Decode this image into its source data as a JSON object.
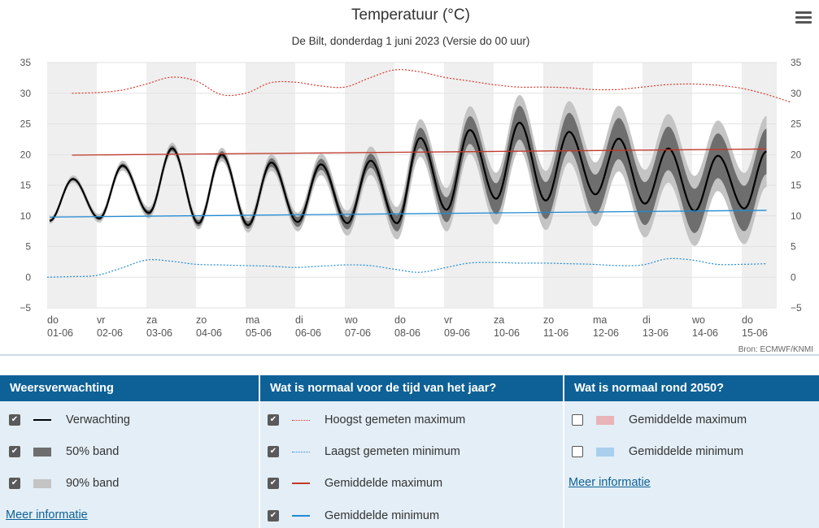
{
  "chart_data": {
    "type": "line",
    "title": "Temperatuur (°C)",
    "subtitle": "De Bilt, donderdag 1 juni 2023 (Versie do 00 uur)",
    "source": "Bron: ECMWF/KNMI",
    "ylim": [
      -5,
      35
    ],
    "yticks": [
      -5,
      0,
      5,
      10,
      15,
      20,
      25,
      30,
      35
    ],
    "ytick_labels": [
      "−5",
      "0",
      "5",
      "10",
      "15",
      "20",
      "25",
      "30",
      "35"
    ],
    "x_days": [
      "do",
      "vr",
      "za",
      "zo",
      "ma",
      "di",
      "wo",
      "do",
      "vr",
      "za",
      "zo",
      "ma",
      "di",
      "wo",
      "do"
    ],
    "x_dates": [
      "01-06",
      "02-06",
      "03-06",
      "04-06",
      "05-06",
      "06-06",
      "07-06",
      "08-06",
      "09-06",
      "10-06",
      "11-06",
      "12-06",
      "13-06",
      "14-06",
      "15-06"
    ],
    "grid": true,
    "alternating_day_shading": true,
    "forecast": {
      "name": "Verwachting",
      "color": "#000000",
      "daily_min": [
        9.2,
        9.6,
        10.5,
        8.8,
        8.5,
        9.0,
        8.8,
        8.8,
        11.0,
        12.8,
        12.5,
        13.5,
        12.0,
        10.8,
        11.2
      ],
      "daily_max": [
        16.0,
        18.2,
        21.0,
        20.0,
        18.7,
        18.4,
        19.0,
        22.7,
        24.0,
        25.2,
        23.7,
        22.6,
        21.0,
        19.8
      ],
      "end_value": 20.5,
      "band50_halfwidth": [
        0.2,
        0.3,
        0.4,
        0.5,
        0.6,
        0.8,
        1.0,
        1.3,
        2.0,
        2.5,
        3.0,
        3.2,
        3.5,
        3.6,
        3.7
      ],
      "band90_halfwidth": [
        0.5,
        0.7,
        0.9,
        1.0,
        1.2,
        1.5,
        2.0,
        2.6,
        3.5,
        4.2,
        4.8,
        5.2,
        5.5,
        5.7,
        5.8
      ]
    },
    "band50": {
      "name": "50% band",
      "color": "#6e6e6e"
    },
    "band90": {
      "name": "90% band",
      "color": "#c4c4c4"
    },
    "record_max": {
      "name": "Hoogst gemeten maximum",
      "color": "#d9372b",
      "x": [
        0.5,
        1.0,
        1.5,
        2.0,
        2.5,
        3.0,
        3.5,
        4.0,
        4.5,
        5.0,
        5.5,
        6.0,
        6.5,
        7.0,
        7.5,
        8.0,
        8.5,
        9.0,
        9.5,
        10.0,
        10.5,
        11.0,
        11.5,
        12.0,
        12.5,
        13.0,
        13.5,
        14.0,
        14.5,
        15.0
      ],
      "y": [
        30.0,
        30.1,
        30.5,
        31.5,
        32.6,
        32.0,
        29.8,
        30.0,
        31.7,
        31.8,
        31.2,
        31.0,
        32.5,
        33.8,
        33.5,
        32.6,
        32.0,
        31.4,
        31.0,
        31.0,
        30.9,
        30.6,
        30.6,
        31.0,
        31.4,
        31.5,
        31.3,
        30.8,
        29.8,
        28.5
      ]
    },
    "record_min": {
      "name": "Laagst gemeten minimum",
      "color": "#1f8ad4",
      "x": [
        0.0,
        0.5,
        1.0,
        1.5,
        2.0,
        2.5,
        3.0,
        3.5,
        4.0,
        4.5,
        5.0,
        5.5,
        6.0,
        6.5,
        7.0,
        7.5,
        8.0,
        8.5,
        9.0,
        9.5,
        10.0,
        10.5,
        11.0,
        11.5,
        12.0,
        12.5,
        13.0,
        13.5,
        14.0,
        14.5
      ],
      "y": [
        0.0,
        0.1,
        0.3,
        1.5,
        2.8,
        2.6,
        2.1,
        2.0,
        1.9,
        1.8,
        1.6,
        1.8,
        2.0,
        1.9,
        1.3,
        0.8,
        1.5,
        2.3,
        2.4,
        2.3,
        2.3,
        2.2,
        2.1,
        1.9,
        2.0,
        3.0,
        2.8,
        2.1,
        2.1,
        2.2
      ]
    },
    "normal_max": {
      "name": "Gemiddelde maximum",
      "color": "#c0392b",
      "y_start": 19.9,
      "y_end": 20.9
    },
    "normal_min": {
      "name": "Gemiddelde minimum",
      "color": "#1f8ad4",
      "y_start": 9.8,
      "y_end": 10.9
    }
  },
  "legend": {
    "forecast": {
      "header": "Weersverwachting",
      "items": [
        {
          "label": "Verwachting",
          "checked": true
        },
        {
          "label": "50% band",
          "checked": true
        },
        {
          "label": "90% band",
          "checked": true
        }
      ],
      "link": "Meer informatie"
    },
    "normal": {
      "header": "Wat is normaal voor de tijd van het jaar?",
      "items": [
        {
          "label": "Hoogst gemeten maximum",
          "checked": true
        },
        {
          "label": "Laagst gemeten minimum",
          "checked": true
        },
        {
          "label": "Gemiddelde maximum",
          "checked": true
        },
        {
          "label": "Gemiddelde minimum",
          "checked": true
        }
      ]
    },
    "future": {
      "header": "Wat is normaal rond 2050?",
      "items": [
        {
          "label": "Gemiddelde maximum",
          "checked": false,
          "color": "#e8b4b8"
        },
        {
          "label": "Gemiddelde minimum",
          "checked": false,
          "color": "#a9cfee"
        }
      ],
      "link": "Meer informatie"
    }
  }
}
